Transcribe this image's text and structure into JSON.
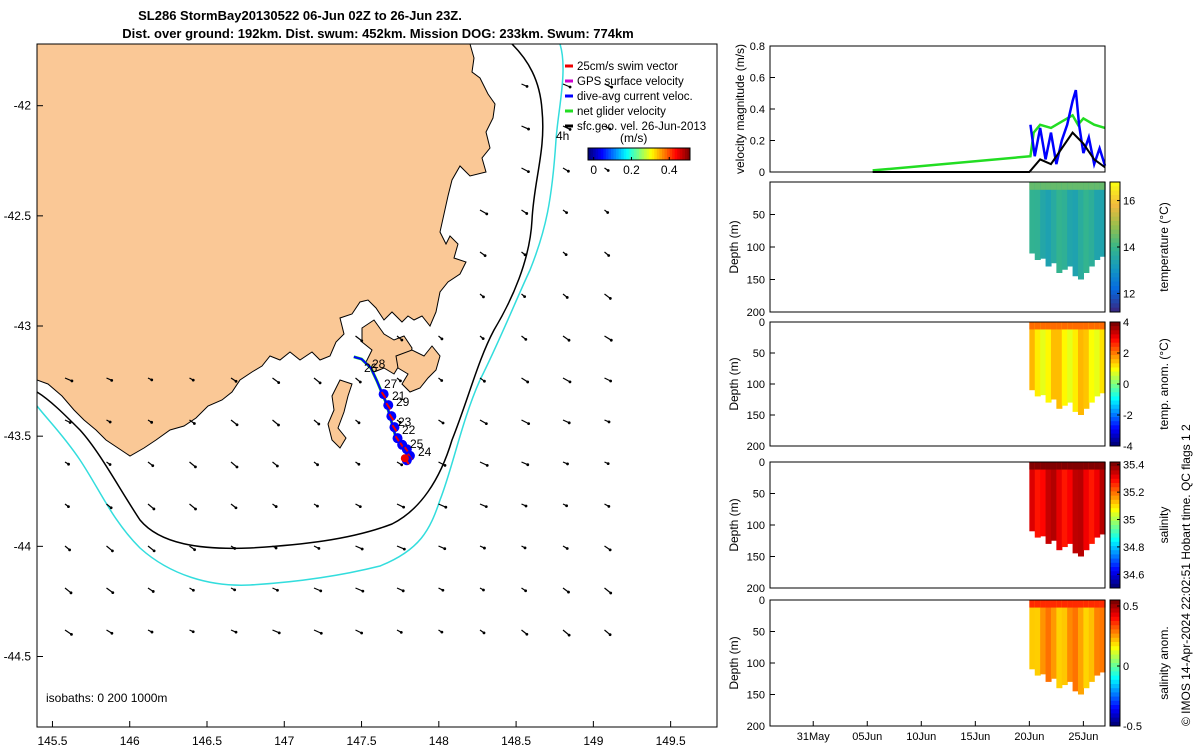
{
  "header": {
    "title_line1": "SL286 StormBay20130522 06-Jun 02Z to 26-Jun 23Z.",
    "title_line2": "Dist. over ground: 192km. Dist. swum: 452km. Mission DOG: 233km. Swum: 774km"
  },
  "colors": {
    "land": "#fac896",
    "isobath_0": "#000000",
    "isobath_200": "#000000",
    "isobath_1000": "#33dddd",
    "swim_vector": "#ee0000",
    "gps_velocity": "#cc00cc",
    "dive_avg": "#0000ff",
    "net_velocity": "#22dd22",
    "geo_vel": "#000000"
  },
  "map": {
    "xlim": [
      145.4,
      149.8
    ],
    "ylim": [
      -44.82,
      -41.72
    ],
    "x_ticks": [
      "145.5",
      "146",
      "146.5",
      "147",
      "147.5",
      "148",
      "148.5",
      "149",
      "149.5"
    ],
    "x_tick_values": [
      145.5,
      146,
      146.5,
      147,
      147.5,
      148,
      148.5,
      149,
      149.5
    ],
    "y_ticks": [
      "-42",
      "-42.5",
      "-43",
      "-43.5",
      "-44",
      "-44.5"
    ],
    "y_tick_values": [
      -42,
      -42.5,
      -43,
      -43.5,
      -44,
      -44.5
    ],
    "legend": [
      "25cm/s swim vector",
      "GPS surface velocity",
      "dive-avg current veloc.",
      "net glider velocity",
      "sfc.geo. vel. 26-Jun-2013"
    ],
    "colorbar_label": "(m/s)",
    "colorbar_ticks": [
      "0",
      "0.2",
      "0.4"
    ],
    "colorbar_tick_values": [
      0,
      0.2,
      0.4
    ],
    "colorbar_range": [
      -0.03,
      0.51
    ],
    "scale_label": "4h",
    "isobaths_label": "isobaths: 0   200  1000m",
    "day_labels": [
      "28",
      "26",
      "27",
      "21",
      "29",
      "23",
      "22",
      "25",
      "24"
    ],
    "track": [
      [
        147.45,
        -43.14
      ],
      [
        147.5,
        -43.15
      ],
      [
        147.56,
        -43.19
      ],
      [
        147.6,
        -43.25
      ],
      [
        147.63,
        -43.3
      ],
      [
        147.66,
        -43.35
      ],
      [
        147.68,
        -43.4
      ],
      [
        147.7,
        -43.45
      ],
      [
        147.72,
        -43.5
      ],
      [
        147.75,
        -43.53
      ],
      [
        147.78,
        -43.55
      ],
      [
        147.8,
        -43.58
      ],
      [
        147.78,
        -43.6
      ]
    ]
  },
  "chart_data": [
    {
      "type": "line",
      "title": "",
      "ylabel": "velocity magnitude (m/s)",
      "ylim": [
        0,
        0.8
      ],
      "yticks": [
        0,
        0.2,
        0.4,
        0.6,
        0.8
      ],
      "ytick_labels": [
        "0",
        "0.2",
        "0.4",
        "0.6",
        "0.8"
      ],
      "xlim_days": [
        -4,
        27
      ],
      "series": [
        {
          "name": "net glider velocity",
          "color": "#22dd22",
          "x": [
            5.5,
            20.1,
            20.4,
            21,
            22,
            23,
            24,
            24.5,
            25,
            26,
            27
          ],
          "y": [
            0.01,
            0.1,
            0.25,
            0.3,
            0.28,
            0.32,
            0.36,
            0.3,
            0.34,
            0.3,
            0.28
          ]
        },
        {
          "name": "dive-avg current veloc.",
          "color": "#0000ff",
          "x": [
            20.1,
            20.5,
            21,
            21.5,
            22,
            22.5,
            23,
            23.5,
            24,
            24.3,
            24.6,
            25,
            25.5,
            26,
            26.5,
            27
          ],
          "y": [
            0.3,
            0.1,
            0.28,
            0.08,
            0.25,
            0.05,
            0.2,
            0.3,
            0.45,
            0.52,
            0.3,
            0.12,
            0.22,
            0.05,
            0.15,
            0.04
          ]
        },
        {
          "name": "sfc.geo. vel.",
          "color": "#000000",
          "x": [
            5.5,
            20,
            21,
            22,
            23,
            24,
            25,
            26,
            27
          ],
          "y": [
            0.0,
            0.0,
            0.08,
            0.05,
            0.15,
            0.25,
            0.18,
            0.08,
            0.03
          ]
        }
      ]
    },
    {
      "type": "heatmap",
      "ylabel": "Depth (m)",
      "cbar_label": "temperature (°C)",
      "ylim": [
        200,
        0
      ],
      "yticks": [
        "50",
        "100",
        "150",
        "200"
      ],
      "ytick_values": [
        50,
        100,
        150,
        200
      ],
      "cbar_ticks": [
        "12",
        "14",
        "16"
      ],
      "cbar_tick_values": [
        12,
        14,
        16
      ],
      "cbar_range": [
        11.2,
        16.8
      ],
      "field_value": 13.6,
      "x_days": [
        20,
        27
      ],
      "depth_profile": [
        110,
        120,
        118,
        130,
        125,
        140,
        135,
        130,
        145,
        150,
        140,
        130,
        120,
        115
      ]
    },
    {
      "type": "heatmap",
      "ylabel": "Depth (m)",
      "cbar_label": "temp. anom. (°C)",
      "ylim": [
        200,
        0
      ],
      "yticks": [
        "0",
        "50",
        "100",
        "150",
        "200"
      ],
      "ytick_values": [
        0,
        50,
        100,
        150,
        200
      ],
      "cbar_ticks": [
        "4",
        "2",
        "0",
        "-2",
        "-4"
      ],
      "cbar_tick_values": [
        4,
        2,
        0,
        -2,
        -4
      ],
      "cbar_range": [
        -4,
        4
      ],
      "field_value": 1.2,
      "x_days": [
        20,
        27
      ],
      "depth_profile": [
        110,
        120,
        118,
        130,
        125,
        140,
        135,
        130,
        145,
        150,
        140,
        130,
        120,
        115
      ]
    },
    {
      "type": "heatmap",
      "ylabel": "Depth (m)",
      "cbar_label": "salinity",
      "ylim": [
        200,
        0
      ],
      "yticks": [
        "0",
        "50",
        "100",
        "150",
        "200"
      ],
      "ytick_values": [
        0,
        50,
        100,
        150,
        200
      ],
      "cbar_ticks": [
        "35.4",
        "35.2",
        "35",
        "34.8",
        "34.6"
      ],
      "cbar_tick_values": [
        35.4,
        35.2,
        35,
        34.8,
        34.6
      ],
      "cbar_range": [
        34.5,
        35.42
      ],
      "field_value": 35.33,
      "x_days": [
        20,
        27
      ],
      "depth_profile": [
        110,
        120,
        118,
        130,
        125,
        140,
        135,
        130,
        145,
        150,
        140,
        130,
        120,
        115
      ]
    },
    {
      "type": "heatmap",
      "ylabel": "Depth (m)",
      "cbar_label": "salinity anom.",
      "ylim": [
        200,
        0
      ],
      "yticks": [
        "0",
        "50",
        "100",
        "150",
        "200"
      ],
      "ytick_values": [
        0,
        50,
        100,
        150,
        200
      ],
      "cbar_ticks": [
        "0.5",
        "0",
        "-0.5"
      ],
      "cbar_tick_values": [
        0.5,
        0,
        -0.5
      ],
      "cbar_range": [
        -0.5,
        0.55
      ],
      "field_value": 0.25,
      "x_days": [
        20,
        27
      ],
      "depth_profile": [
        110,
        120,
        118,
        130,
        125,
        140,
        135,
        130,
        145,
        150,
        140,
        130,
        120,
        115
      ],
      "xticks": [
        "31May",
        "05Jun",
        "10Jun",
        "15Jun",
        "20Jun",
        "25Jun"
      ],
      "xtick_days": [
        0,
        5,
        10,
        15,
        20,
        25
      ]
    }
  ],
  "footer": {
    "credit": "© IMOS 14-Apr-2024 22:02:51 Hobart time. QC flags 1  2"
  }
}
